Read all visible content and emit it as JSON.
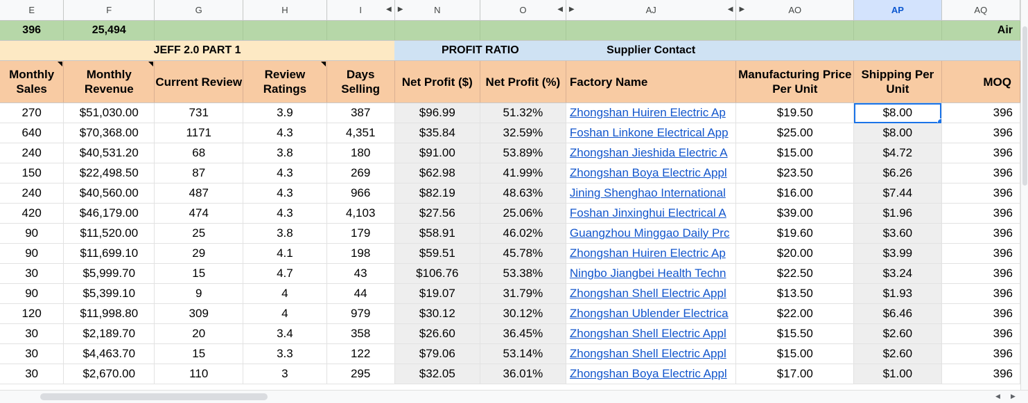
{
  "columns": [
    "E",
    "F",
    "G",
    "H",
    "I",
    "N",
    "O",
    "AJ",
    "AO",
    "AP",
    "AQ"
  ],
  "summary": {
    "e": "396",
    "f": "25,494",
    "aq": "Air"
  },
  "groups": {
    "jeff": "JEFF 2.0 PART 1",
    "profit": "PROFIT RATIO",
    "supplier": "Supplier Contact"
  },
  "headers": {
    "monthly_sales": "Monthly Sales",
    "monthly_revenue": "Monthly Revenue",
    "current_review": "Current Review",
    "review_ratings": "Review Ratings",
    "days_selling": "Days Selling",
    "net_profit_usd": "Net Profit ($)",
    "net_profit_pct": "Net Profit (%)",
    "factory_name": "Factory Name",
    "manufacturing_price": "Manufacturing Price Per Unit",
    "shipping_per_unit": "Shipping Per Unit",
    "moq": "MOQ"
  },
  "rows": [
    [
      "270",
      "$51,030.00",
      "731",
      "3.9",
      "387",
      "$96.99",
      "51.32%",
      "Zhongshan Huiren Electric Ap",
      "$19.50",
      "$8.00",
      "396"
    ],
    [
      "640",
      "$70,368.00",
      "1171",
      "4.3",
      "4,351",
      "$35.84",
      "32.59%",
      "Foshan Linkone Electrical App",
      "$25.00",
      "$8.00",
      "396"
    ],
    [
      "240",
      "$40,531.20",
      "68",
      "3.8",
      "180",
      "$91.00",
      "53.89%",
      "Zhongshan Jieshida Electric A",
      "$15.00",
      "$4.72",
      "396"
    ],
    [
      "150",
      "$22,498.50",
      "87",
      "4.3",
      "269",
      "$62.98",
      "41.99%",
      "Zhongshan Boya Electric Appl",
      "$23.50",
      "$6.26",
      "396"
    ],
    [
      "240",
      "$40,560.00",
      "487",
      "4.3",
      "966",
      "$82.19",
      "48.63%",
      "Jining Shenghao International",
      "$16.00",
      "$7.44",
      "396"
    ],
    [
      "420",
      "$46,179.00",
      "474",
      "4.3",
      "4,103",
      "$27.56",
      "25.06%",
      "Foshan Jinxinghui Electrical A",
      "$39.00",
      "$1.96",
      "396"
    ],
    [
      "90",
      "$11,520.00",
      "25",
      "3.8",
      "179",
      "$58.91",
      "46.02%",
      "Guangzhou Minggao Daily Prc",
      "$19.60",
      "$3.60",
      "396"
    ],
    [
      "90",
      "$11,699.10",
      "29",
      "4.1",
      "198",
      "$59.51",
      "45.78%",
      "Zhongshan Huiren Electric Ap",
      "$20.00",
      "$3.99",
      "396"
    ],
    [
      "30",
      "$5,999.70",
      "15",
      "4.7",
      "43",
      "$106.76",
      "53.38%",
      "Ningbo Jiangbei Health Techn",
      "$22.50",
      "$3.24",
      "396"
    ],
    [
      "90",
      "$5,399.10",
      "9",
      "4",
      "44",
      "$19.07",
      "31.79%",
      "Zhongshan Shell Electric Appl",
      "$13.50",
      "$1.93",
      "396"
    ],
    [
      "120",
      "$11,998.80",
      "309",
      "4",
      "979",
      "$30.12",
      "30.12%",
      "Zhongshan Ublender Electrica",
      "$22.00",
      "$6.46",
      "396"
    ],
    [
      "30",
      "$2,189.70",
      "20",
      "3.4",
      "358",
      "$26.60",
      "36.45%",
      "Zhongshan Shell Electric Appl",
      "$15.50",
      "$2.60",
      "396"
    ],
    [
      "30",
      "$4,463.70",
      "15",
      "3.3",
      "122",
      "$79.06",
      "53.14%",
      "Zhongshan Shell Electric Appl",
      "$15.00",
      "$2.60",
      "396"
    ],
    [
      "30",
      "$2,670.00",
      "110",
      "3",
      "295",
      "$32.05",
      "36.01%",
      "Zhongshan Boya Electric Appl",
      "$17.00",
      "$1.00",
      "396"
    ]
  ]
}
